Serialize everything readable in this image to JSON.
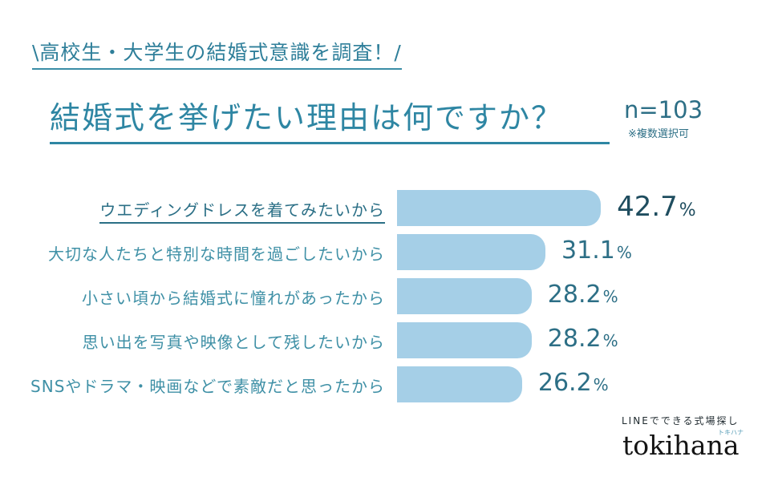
{
  "header": {
    "subtitle": "\\高校生・大学生の結婚式意識を調査！/",
    "title": "結婚式を挙げたい理由は何ですか？",
    "n": "n=103",
    "note": "※複数選択可"
  },
  "chart_data": {
    "type": "bar",
    "orientation": "horizontal",
    "unit": "%",
    "xlim": [
      0,
      50
    ],
    "categories": [
      "ウエディングドレスを着てみたいから",
      "大切な人たちと特別な時間を過ごしたいから",
      "小さい頃から結婚式に憧れがあったから",
      "思い出を写真や映像として残したいから",
      "SNSやドラマ・映画などで素敵だと思ったから"
    ],
    "values": [
      42.7,
      31.1,
      28.2,
      28.2,
      26.2
    ],
    "value_labels": [
      "42.7",
      "31.1",
      "28.2",
      "28.2",
      "26.2"
    ],
    "highlight_index": 0,
    "bar_color": "#a5cfe7",
    "label_color": "#3f90a6",
    "highlight_color": "#2b6f86"
  },
  "branding": {
    "tagline": "LINEでできる式場探し",
    "kana": "トキハナ",
    "logo": "tokihana"
  }
}
